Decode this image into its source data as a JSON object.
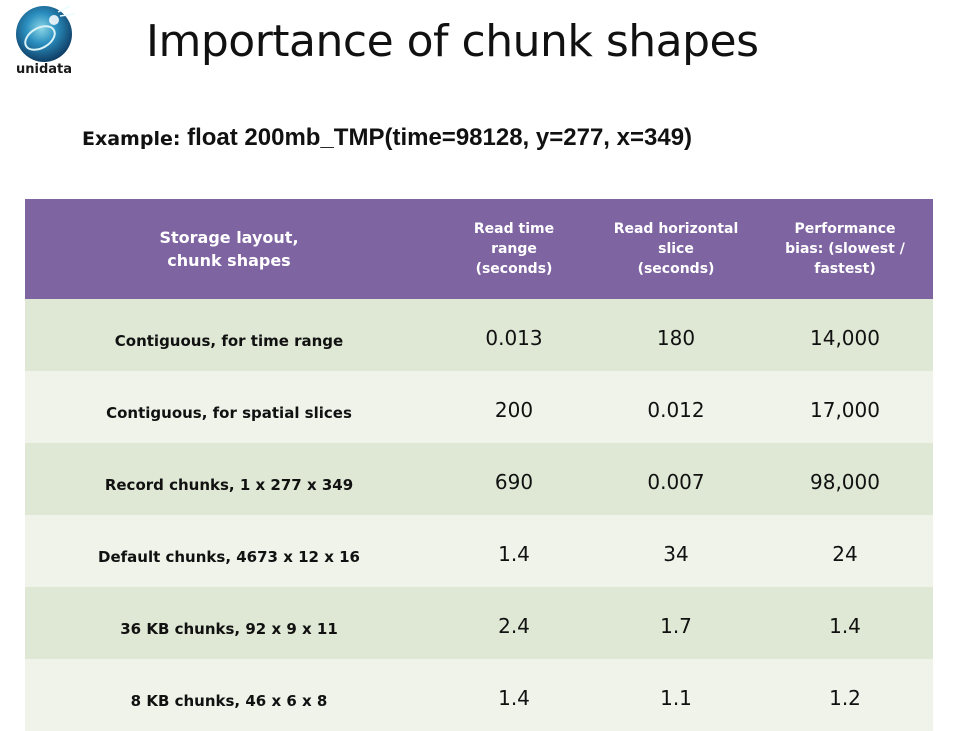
{
  "logo": {
    "text": "unidata",
    "icon": "unidata-globe-logo"
  },
  "title": "Importance of chunk shapes",
  "subtitle": {
    "label": "Example: ",
    "expression": "float 200mb_TMP(time=98128, y=277, x=349)"
  },
  "table": {
    "headers": [
      "Storage layout,\nchunk shapes",
      "Read time\nrange\n(seconds)",
      "Read horizontal\nslice\n(seconds)",
      "Performance\nbias: (slowest /\nfastest)"
    ],
    "rows": [
      {
        "layout": "Contiguous, for time range",
        "time": "0.013",
        "slice": "180",
        "bias": "14,000"
      },
      {
        "layout": "Contiguous, for spatial slices",
        "time": "200",
        "slice": "0.012",
        "bias": "17,000"
      },
      {
        "layout": "Record chunks, 1 x 277 x 349",
        "time": "690",
        "slice": "0.007",
        "bias": "98,000"
      },
      {
        "layout": "Default chunks, 4673 x 12 x 16",
        "time": "1.4",
        "slice": "34",
        "bias": "24"
      },
      {
        "layout": "36 KB chunks, 92 x 9 x 11",
        "time": "2.4",
        "slice": "1.7",
        "bias": "1.4"
      },
      {
        "layout": "8 KB chunks, 46 x 6 x 8",
        "time": "1.4",
        "slice": "1.1",
        "bias": "1.2"
      }
    ]
  },
  "colors": {
    "header_bg": "#7f64a2",
    "row_odd_bg": "#dfe8d5",
    "row_even_bg": "#eff3ea",
    "logo_blue": "#1b6e9b",
    "logo_teal": "#3fb8c9"
  }
}
